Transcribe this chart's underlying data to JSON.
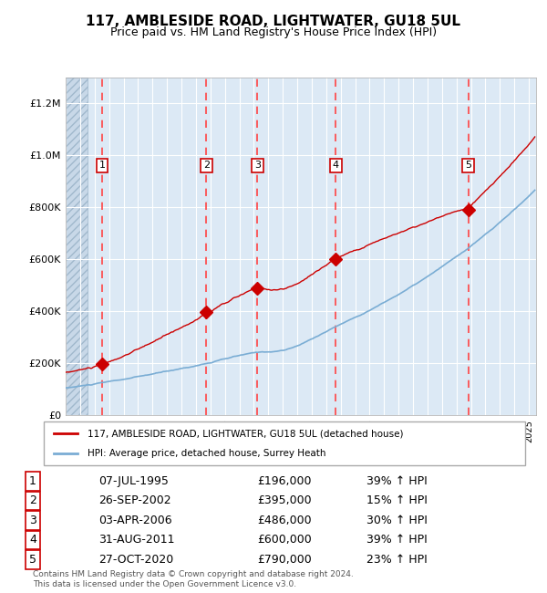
{
  "title": "117, AMBLESIDE ROAD, LIGHTWATER, GU18 5UL",
  "subtitle": "Price paid vs. HM Land Registry's House Price Index (HPI)",
  "legend_red": "117, AMBLESIDE ROAD, LIGHTWATER, GU18 5UL (detached house)",
  "legend_blue": "HPI: Average price, detached house, Surrey Heath",
  "footer": "Contains HM Land Registry data © Crown copyright and database right 2024.\nThis data is licensed under the Open Government Licence v3.0.",
  "transactions": [
    {
      "num": 1,
      "date": "07-JUL-1995",
      "price": 196000,
      "pct": "39%",
      "year_x": 1995.52
    },
    {
      "num": 2,
      "date": "26-SEP-2002",
      "price": 395000,
      "pct": "15%",
      "year_x": 2002.73
    },
    {
      "num": 3,
      "date": "03-APR-2006",
      "price": 486000,
      "pct": "30%",
      "year_x": 2006.25
    },
    {
      "num": 4,
      "date": "31-AUG-2011",
      "price": 600000,
      "pct": "39%",
      "year_x": 2011.66
    },
    {
      "num": 5,
      "date": "27-OCT-2020",
      "price": 790000,
      "pct": "23%",
      "year_x": 2020.82
    }
  ],
  "ylim": [
    0,
    1300000
  ],
  "xlim_start": 1993.0,
  "xlim_end": 2025.5,
  "background_color": "#dce9f5",
  "hatch_color": "#b0c4d8",
  "grid_color": "#ffffff",
  "red_color": "#cc0000",
  "blue_color": "#7aadd4",
  "dashed_color": "#ff4444"
}
